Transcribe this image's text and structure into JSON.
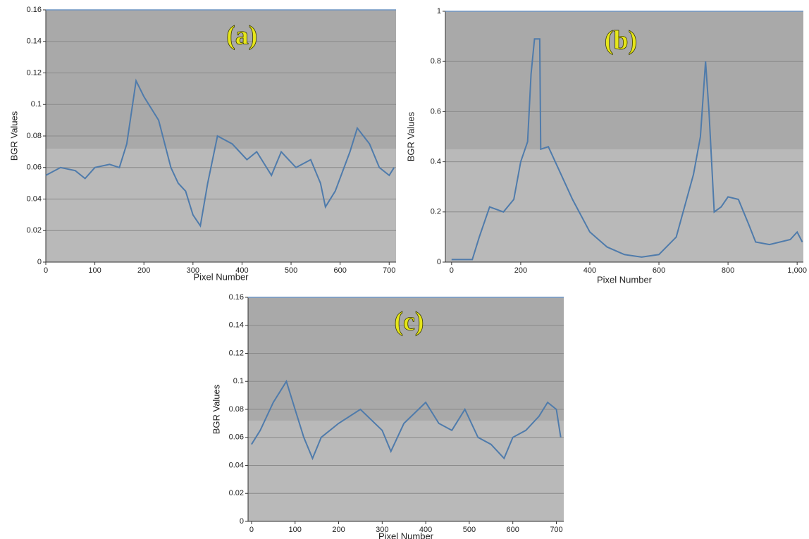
{
  "chart_data": [
    {
      "type": "line",
      "title": "(a)",
      "x_label": "Pixel Number",
      "y_label": "BGR Values",
      "color": "#4f7bab",
      "grid": true,
      "x": [
        0,
        30,
        60,
        80,
        100,
        130,
        150,
        165,
        184,
        200,
        230,
        255,
        270,
        285,
        300,
        315,
        330,
        350,
        380,
        410,
        430,
        460,
        480,
        510,
        540,
        560,
        570,
        590,
        620,
        635,
        660,
        680,
        700,
        710
      ],
      "values": [
        0.055,
        0.06,
        0.058,
        0.053,
        0.06,
        0.062,
        0.06,
        0.075,
        0.115,
        0.105,
        0.09,
        0.06,
        0.05,
        0.045,
        0.03,
        0.023,
        0.05,
        0.08,
        0.075,
        0.065,
        0.07,
        0.055,
        0.07,
        0.06,
        0.065,
        0.05,
        0.035,
        0.045,
        0.07,
        0.085,
        0.075,
        0.06,
        0.055,
        0.06
      ],
      "xlim": [
        0,
        714
      ],
      "ylim": [
        0,
        0.16
      ],
      "xticks": [
        0,
        100,
        200,
        300,
        400,
        500,
        600,
        700
      ],
      "yticks": [
        0,
        0.02,
        0.04,
        0.06,
        0.08,
        0.1,
        0.12,
        0.14,
        0.16
      ]
    },
    {
      "type": "line",
      "title": "(b)",
      "x_label": "Pixel Number",
      "y_label": "BGR Values",
      "color": "#4f7bab",
      "grid": true,
      "x": [
        0,
        60,
        80,
        110,
        150,
        180,
        200,
        220,
        230,
        240,
        255,
        258,
        280,
        300,
        350,
        400,
        450,
        500,
        550,
        600,
        650,
        700,
        720,
        735,
        745,
        760,
        780,
        800,
        830,
        860,
        880,
        920,
        980,
        1000,
        1015
      ],
      "values": [
        0.01,
        0.01,
        0.1,
        0.22,
        0.2,
        0.25,
        0.4,
        0.48,
        0.75,
        0.89,
        0.89,
        0.45,
        0.46,
        0.4,
        0.25,
        0.12,
        0.06,
        0.03,
        0.02,
        0.03,
        0.1,
        0.35,
        0.5,
        0.8,
        0.6,
        0.2,
        0.22,
        0.26,
        0.25,
        0.15,
        0.08,
        0.07,
        0.09,
        0.12,
        0.08
      ],
      "xlim": [
        -18,
        1018
      ],
      "ylim": [
        0,
        1
      ],
      "xticks": [
        0,
        200,
        400,
        600,
        800,
        {
          "value": 1000,
          "label": "1,000"
        }
      ],
      "yticks": [
        0,
        0.2,
        0.4,
        0.6,
        0.8,
        1
      ]
    },
    {
      "type": "line",
      "title": "(c)",
      "x_label": "Pixel Number",
      "y_label": "BGR Values",
      "color": "#4f7bab",
      "grid": true,
      "x": [
        0,
        20,
        50,
        80,
        100,
        120,
        140,
        160,
        200,
        250,
        300,
        320,
        350,
        400,
        430,
        460,
        490,
        520,
        550,
        580,
        600,
        630,
        660,
        680,
        700,
        710
      ],
      "values": [
        0.055,
        0.065,
        0.085,
        0.1,
        0.08,
        0.06,
        0.045,
        0.06,
        0.07,
        0.08,
        0.065,
        0.05,
        0.07,
        0.085,
        0.07,
        0.065,
        0.08,
        0.06,
        0.055,
        0.045,
        0.06,
        0.065,
        0.075,
        0.085,
        0.08,
        0.06
      ],
      "xlim": [
        -8,
        717
      ],
      "ylim": [
        0,
        0.16
      ],
      "xticks": [
        0,
        100,
        200,
        300,
        400,
        500,
        600,
        700
      ],
      "yticks": [
        0,
        0.02,
        0.04,
        0.06,
        0.08,
        0.1,
        0.12,
        0.14,
        0.16
      ]
    }
  ]
}
